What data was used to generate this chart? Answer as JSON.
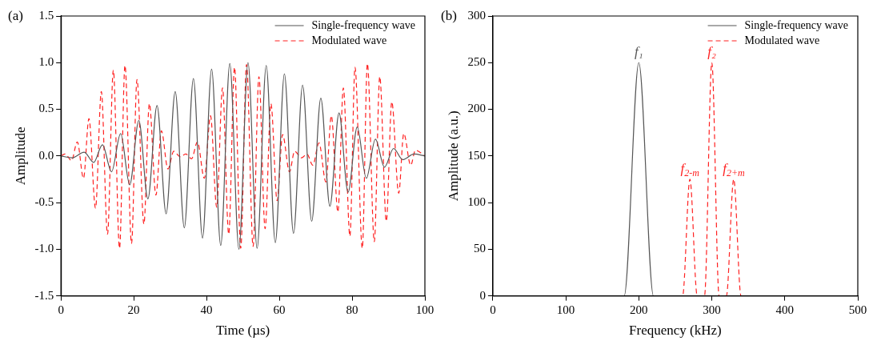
{
  "chart_data": [
    {
      "type": "line",
      "title": "(a)",
      "xlabel": "Time (µs)",
      "ylabel": "Amplitude",
      "xlim": [
        0,
        100
      ],
      "xticks": [
        0,
        20,
        40,
        60,
        80,
        100
      ],
      "ylim": [
        -1.5,
        1.5
      ],
      "yticks": [
        -1.5,
        {
          "value": -1,
          "label": "-1.0"
        },
        -0.5,
        {
          "value": 0,
          "label": "0.0"
        },
        0.5,
        {
          "value": 1,
          "label": "1.0"
        },
        1.5
      ],
      "grid": false,
      "legend": "top right",
      "marker": "none",
      "series": [
        {
          "name": "Single-frequency wave",
          "color": "#555555",
          "line_style": "solid",
          "x": [
            0,
            3,
            6.4,
            9,
            11.4,
            13.9,
            16.4,
            18.9,
            21.4,
            23.9,
            26.4,
            28.9,
            31.4,
            33.9,
            36.4,
            38.9,
            41.4,
            43.9,
            46.4,
            48.9,
            51.4,
            53.9,
            56.4,
            58.9,
            61.4,
            63.9,
            66.4,
            68.9,
            71.4,
            73.9,
            76.4,
            78.9,
            81.4,
            83.9,
            86.4,
            88.9,
            91.4,
            93.9,
            97,
            100
          ],
          "values": [
            0,
            -0.02,
            0.04,
            -0.07,
            0.12,
            -0.17,
            0.24,
            -0.31,
            0.38,
            -0.46,
            0.54,
            -0.62,
            0.69,
            -0.77,
            0.83,
            -0.88,
            0.93,
            -0.96,
            0.99,
            -1.0,
            1.0,
            -0.99,
            0.97,
            -0.93,
            0.88,
            -0.83,
            0.76,
            -0.7,
            0.62,
            -0.54,
            0.46,
            -0.39,
            0.31,
            -0.24,
            0.18,
            -0.12,
            0.08,
            -0.04,
            0.02,
            0
          ]
        },
        {
          "name": "Modulated wave",
          "color": "#ff2020",
          "line_style": "dashed",
          "x": [
            0,
            1.2,
            2.9,
            4.5,
            6.2,
            7.7,
            9.5,
            11.1,
            12.8,
            14.4,
            16.1,
            17.6,
            19.4,
            20.9,
            22.8,
            24.3,
            26.1,
            27.6,
            29.4,
            31.0,
            32.8,
            34.3,
            35.9,
            37.5,
            39.4,
            41.1,
            42.8,
            44.4,
            46.1,
            47.7,
            49.4,
            51.0,
            52.8,
            54.4,
            56.1,
            57.7,
            59.4,
            60.9,
            62.8,
            64.2,
            66.1,
            67.6,
            69.2,
            70.9,
            72.8,
            74.3,
            76.1,
            77.6,
            79.4,
            80.8,
            82.8,
            84.2,
            86.1,
            87.6,
            89.4,
            90.9,
            92.8,
            94.2,
            96.1,
            97.4,
            100
          ],
          "values": [
            0,
            0.02,
            -0.05,
            0.15,
            -0.24,
            0.4,
            -0.56,
            0.69,
            -0.84,
            0.92,
            -0.99,
            0.97,
            -0.94,
            0.82,
            -0.73,
            0.56,
            -0.42,
            0.27,
            -0.14,
            0.05,
            -0.01,
            0.02,
            -0.03,
            0.15,
            -0.24,
            0.43,
            -0.55,
            0.73,
            -0.84,
            0.95,
            -0.99,
            0.98,
            -0.97,
            0.85,
            -0.78,
            0.56,
            -0.48,
            0.23,
            -0.17,
            0.05,
            -0.02,
            0.02,
            -0.1,
            0.14,
            -0.28,
            0.43,
            -0.6,
            0.73,
            -0.86,
            0.95,
            -0.99,
            0.99,
            -0.92,
            0.85,
            -0.7,
            0.58,
            -0.4,
            0.24,
            -0.1,
            0.06,
            0
          ]
        }
      ]
    },
    {
      "type": "line",
      "title": "(b)",
      "xlabel": "Frequency (kHz)",
      "ylabel": "Amplitude (a.u.)",
      "xlim": [
        0,
        500
      ],
      "xticks": [
        0,
        100,
        200,
        300,
        400,
        500
      ],
      "ylim": [
        0,
        300
      ],
      "yticks": [
        0,
        50,
        100,
        150,
        200,
        250,
        300
      ],
      "grid": false,
      "legend": "top right",
      "marker": "none",
      "series": [
        {
          "name": "Single-frequency wave",
          "color": "#555555",
          "line_style": "solid",
          "x": [
            0,
            180,
            200,
            220,
            500
          ],
          "values": [
            0,
            0,
            250,
            0,
            0
          ]
        },
        {
          "name": "Modulated wave",
          "color": "#ff2020",
          "line_style": "dashed",
          "x": [
            0,
            260,
            270,
            280,
            290,
            300,
            310,
            320,
            330,
            340,
            500
          ],
          "values": [
            0,
            0,
            125,
            0,
            0,
            250,
            0,
            0,
            125,
            0,
            0
          ]
        }
      ],
      "annotations": [
        {
          "text": "f₁",
          "x": 200,
          "y": 250
        },
        {
          "text": "f₂",
          "x": 300,
          "y": 250
        },
        {
          "text": "f$_{2-m}$",
          "x": 270,
          "y": 125
        },
        {
          "text": "f$_{2+m}$",
          "x": 330,
          "y": 125
        }
      ]
    }
  ]
}
